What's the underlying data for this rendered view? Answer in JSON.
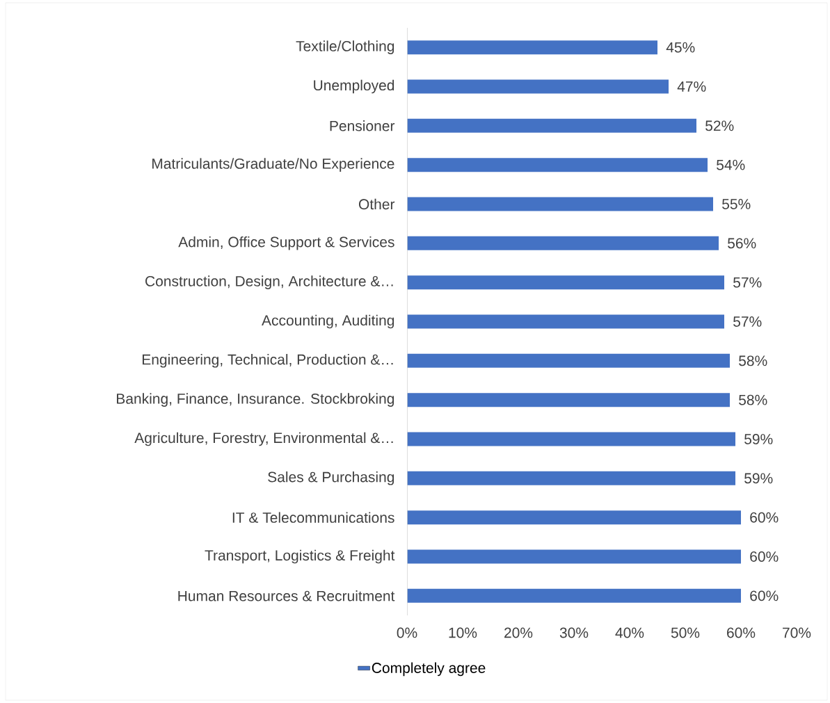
{
  "chart_data": {
    "type": "bar",
    "orientation": "horizontal",
    "categories": [
      "Textile/Clothing",
      "Unemployed",
      "Pensioner",
      "Matriculants/Graduate/No Experience",
      "Other",
      "Admin, Office Support & Services",
      "Construction, Design, Architecture &…",
      "Accounting, Auditing",
      "Engineering, Technical, Production &…",
      "Banking, Finance, Insurance. Stockbroking",
      "Agriculture, Forestry, Environmental &…",
      "Sales & Purchasing",
      "IT & Telecommunications",
      "Transport, Logistics & Freight",
      "Human Resources & Recruitment"
    ],
    "series": [
      {
        "name": "Completely agree",
        "color": "#4472c4",
        "values": [
          45,
          47,
          52,
          54,
          55,
          56,
          57,
          57,
          58,
          58,
          59,
          59,
          60,
          60,
          60
        ],
        "value_labels": [
          "45%",
          "47%",
          "52%",
          "54%",
          "55%",
          "56%",
          "57%",
          "57%",
          "58%",
          "58%",
          "59%",
          "59%",
          "60%",
          "60%",
          "60%"
        ]
      }
    ],
    "xlim": [
      0,
      70
    ],
    "xticks": [
      {
        "value": 0,
        "label": "0%"
      },
      {
        "value": 10,
        "label": "10%"
      },
      {
        "value": 20,
        "label": "20%"
      },
      {
        "value": 30,
        "label": "30%"
      },
      {
        "value": 40,
        "label": "40%"
      },
      {
        "value": 50,
        "label": "50%"
      },
      {
        "value": 60,
        "label": "60%"
      },
      {
        "value": 70,
        "label": "70%"
      }
    ],
    "legend": "bottom"
  }
}
